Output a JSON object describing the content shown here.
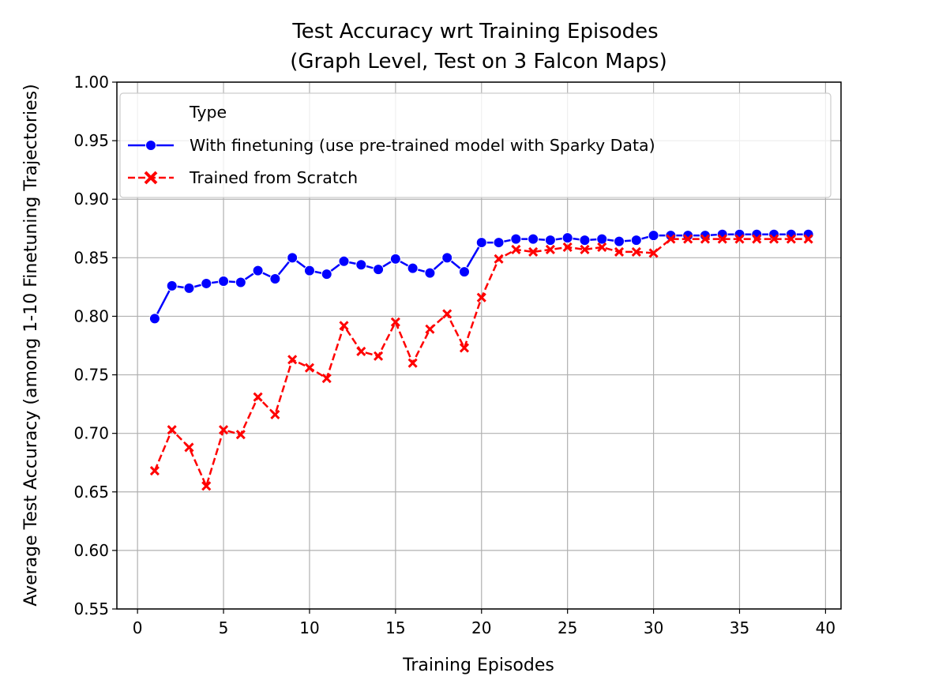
{
  "chart_data": {
    "type": "line",
    "title_line1": "Test Accuracy wrt Training Episodes",
    "title_line2": "(Graph Level, Test on 3 Falcon Maps)",
    "xlabel": "Training Episodes",
    "ylabel": "Average Test Accuracy (among 1-10 Finetuning Trajectories)",
    "xlim": [
      -1.2,
      40.9
    ],
    "ylim": [
      0.55,
      1.0
    ],
    "xticks": [
      0,
      5,
      10,
      15,
      20,
      25,
      30,
      35,
      40
    ],
    "xtick_labels": [
      "0",
      "5",
      "10",
      "15",
      "20",
      "25",
      "30",
      "35",
      "40"
    ],
    "yticks": [
      0.55,
      0.6,
      0.65,
      0.7,
      0.75,
      0.8,
      0.85,
      0.9,
      0.95,
      1.0
    ],
    "ytick_labels": [
      "0.55",
      "0.60",
      "0.65",
      "0.70",
      "0.75",
      "0.80",
      "0.85",
      "0.90",
      "0.95",
      "1.00"
    ],
    "grid": true,
    "legend": {
      "title": "Type",
      "placement": "top-left"
    },
    "x": [
      1,
      2,
      3,
      4,
      5,
      6,
      7,
      8,
      9,
      10,
      11,
      12,
      13,
      14,
      15,
      16,
      17,
      18,
      19,
      20,
      21,
      22,
      23,
      24,
      25,
      26,
      27,
      28,
      29,
      30,
      31,
      32,
      33,
      34,
      35,
      36,
      37,
      38,
      39
    ],
    "series": [
      {
        "name": "With finetuning (use pre-trained model with Sparky Data)",
        "color": "#0000ff",
        "line_style": "solid",
        "marker": "circle",
        "values": [
          0.798,
          0.826,
          0.824,
          0.828,
          0.83,
          0.829,
          0.839,
          0.832,
          0.85,
          0.839,
          0.836,
          0.847,
          0.844,
          0.84,
          0.849,
          0.841,
          0.837,
          0.85,
          0.838,
          0.863,
          0.863,
          0.866,
          0.866,
          0.865,
          0.867,
          0.865,
          0.866,
          0.864,
          0.865,
          0.869,
          0.869,
          0.869,
          0.869,
          0.87,
          0.87,
          0.87,
          0.87,
          0.87,
          0.87
        ]
      },
      {
        "name": "Trained from Scratch",
        "color": "#ff0000",
        "line_style": "dashed",
        "marker": "x",
        "values": [
          0.668,
          0.703,
          0.688,
          0.655,
          0.703,
          0.699,
          0.731,
          0.716,
          0.763,
          0.756,
          0.747,
          0.792,
          0.77,
          0.766,
          0.795,
          0.76,
          0.789,
          0.802,
          0.773,
          0.816,
          0.849,
          0.857,
          0.855,
          0.857,
          0.859,
          0.857,
          0.859,
          0.855,
          0.855,
          0.854,
          0.866,
          0.866,
          0.866,
          0.866,
          0.866,
          0.866,
          0.866,
          0.866,
          0.866
        ]
      }
    ]
  }
}
